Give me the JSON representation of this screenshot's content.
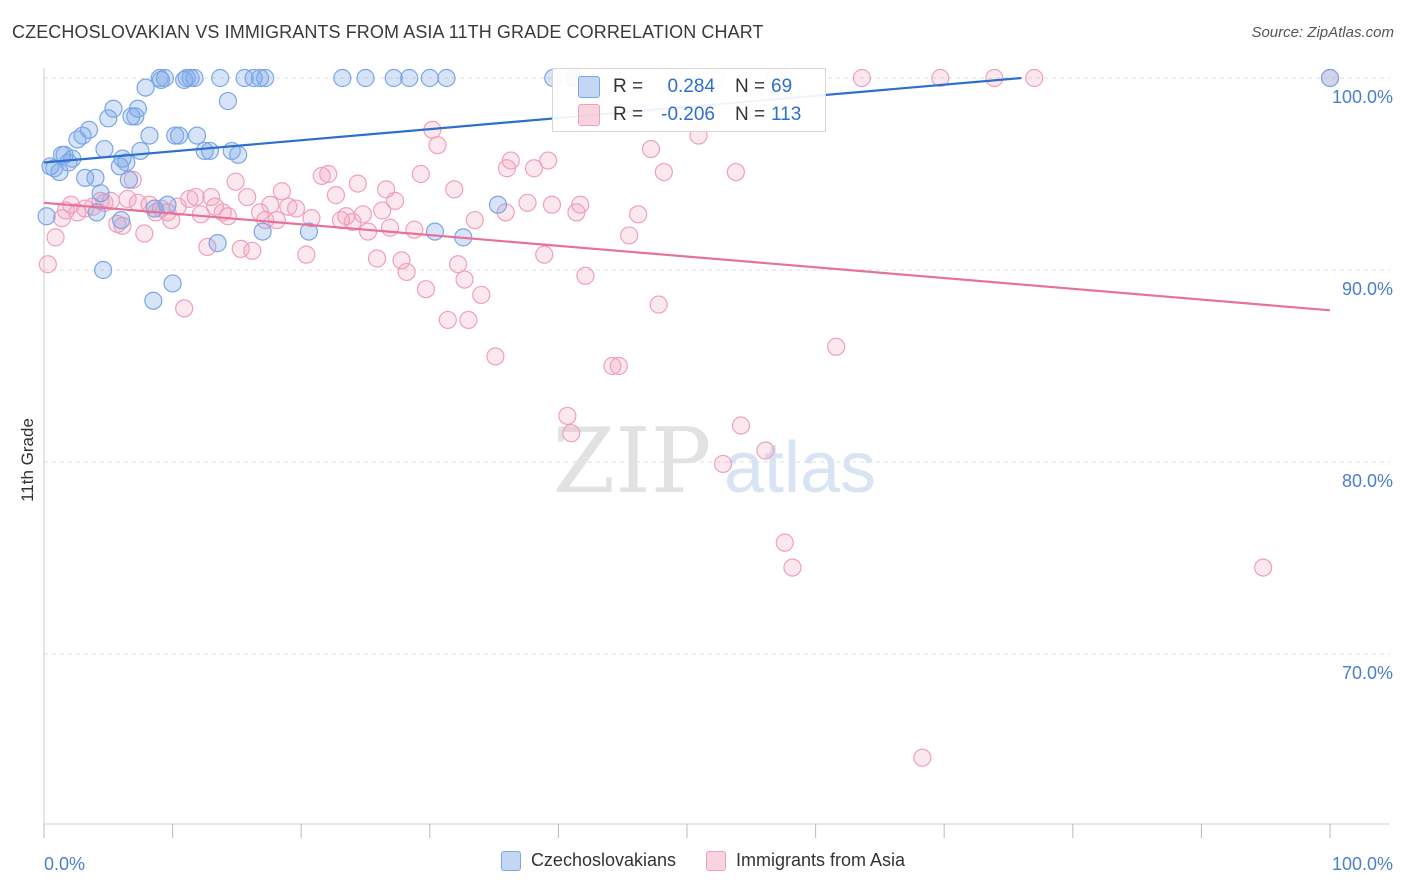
{
  "title": "CZECHOSLOVAKIAN VS IMMIGRANTS FROM ASIA 11TH GRADE CORRELATION CHART",
  "source": "Source: ZipAtlas.com",
  "watermark": {
    "zip": "ZIP",
    "atlas": "atlas"
  },
  "colors": {
    "blue": "#7aa6e8",
    "blue_line": "#2c6fd0",
    "blue_fill": "rgba(122,166,232,0.30)",
    "pink": "#f0a0bc",
    "pink_line": "#e8709a",
    "pink_fill": "rgba(240,160,188,0.25)",
    "axis_text": "#4a7fd0"
  },
  "stats": [
    {
      "series": "Czechoslovakians",
      "r_label": "R =",
      "r": "0.284",
      "n_label": "N =",
      "n": "69"
    },
    {
      "series": "Immigrants from Asia",
      "r_label": "R =",
      "r": "-0.206",
      "n_label": "N =",
      "n": "113"
    }
  ],
  "chart_data": {
    "type": "scatter",
    "title": "CZECHOSLOVAKIAN VS IMMIGRANTS FROM ASIA 11TH GRADE CORRELATION CHART",
    "xlabel": "",
    "ylabel": "11th Grade",
    "xlim": [
      0,
      100
    ],
    "ylim": [
      60,
      100
    ],
    "x_tick_labels": [
      "0.0%",
      "100.0%"
    ],
    "y_ticks": [
      100,
      90,
      80,
      70
    ],
    "y_tick_labels": [
      "100.0%",
      "90.0%",
      "80.0%",
      "70.0%"
    ],
    "legend_position": "bottom-center",
    "series": [
      {
        "name": "Czechoslovakians",
        "color": "#7aa6e8",
        "trend": {
          "x": [
            0,
            76
          ],
          "y": [
            95.6,
            100.0
          ]
        },
        "points": [
          [
            0.5,
            95.4
          ],
          [
            0.8,
            95.3
          ],
          [
            1.2,
            95.1
          ],
          [
            1.4,
            96.0
          ],
          [
            1.6,
            96.0
          ],
          [
            1.9,
            95.6
          ],
          [
            2.2,
            95.8
          ],
          [
            2.6,
            96.8
          ],
          [
            3.0,
            97.0
          ],
          [
            3.5,
            97.3
          ],
          [
            3.2,
            94.8
          ],
          [
            4.0,
            94.8
          ],
          [
            4.4,
            94.0
          ],
          [
            4.1,
            93.0
          ],
          [
            4.6,
            90.0
          ],
          [
            4.7,
            96.3
          ],
          [
            5.0,
            97.9
          ],
          [
            5.4,
            98.4
          ],
          [
            5.9,
            95.4
          ],
          [
            6.1,
            95.8
          ],
          [
            6.4,
            95.6
          ],
          [
            6.6,
            94.7
          ],
          [
            6.8,
            98.0
          ],
          [
            7.1,
            98.0
          ],
          [
            7.3,
            98.4
          ],
          [
            7.5,
            96.2
          ],
          [
            6.0,
            92.6
          ],
          [
            7.9,
            99.5
          ],
          [
            8.2,
            97.0
          ],
          [
            8.5,
            88.4
          ],
          [
            8.6,
            93.2
          ],
          [
            9.1,
            99.9
          ],
          [
            9.0,
            100.0
          ],
          [
            9.4,
            100.0
          ],
          [
            9.6,
            93.4
          ],
          [
            10.0,
            89.3
          ],
          [
            10.2,
            97.0
          ],
          [
            10.5,
            97.0
          ],
          [
            10.9,
            99.9
          ],
          [
            11.1,
            100.0
          ],
          [
            11.4,
            100.0
          ],
          [
            11.7,
            100.0
          ],
          [
            11.9,
            97.0
          ],
          [
            12.5,
            96.2
          ],
          [
            12.9,
            96.2
          ],
          [
            13.5,
            91.4
          ],
          [
            13.7,
            100.0
          ],
          [
            14.3,
            98.8
          ],
          [
            14.6,
            96.2
          ],
          [
            15.1,
            96.0
          ],
          [
            15.6,
            100.0
          ],
          [
            16.3,
            100.0
          ],
          [
            16.8,
            100.0
          ],
          [
            17.2,
            100.0
          ],
          [
            17.0,
            92.0
          ],
          [
            20.6,
            92.0
          ],
          [
            23.2,
            100.0
          ],
          [
            25.0,
            100.0
          ],
          [
            27.2,
            100.0
          ],
          [
            28.4,
            100.0
          ],
          [
            30.0,
            100.0
          ],
          [
            30.4,
            92.0
          ],
          [
            31.3,
            100.0
          ],
          [
            32.6,
            91.7
          ],
          [
            35.3,
            93.4
          ],
          [
            39.6,
            100.0
          ],
          [
            41.2,
            100.0
          ],
          [
            0.2,
            92.8
          ],
          [
            100.0,
            100.0
          ]
        ]
      },
      {
        "name": "Immigrants from Asia",
        "color": "#f0a0bc",
        "trend": {
          "x": [
            0,
            100
          ],
          "y": [
            93.5,
            87.9
          ]
        },
        "points": [
          [
            0.3,
            90.3
          ],
          [
            0.9,
            91.7
          ],
          [
            1.4,
            92.7
          ],
          [
            1.7,
            93.1
          ],
          [
            2.1,
            93.4
          ],
          [
            2.6,
            93.0
          ],
          [
            3.2,
            93.2
          ],
          [
            3.8,
            93.3
          ],
          [
            4.4,
            93.6
          ],
          [
            4.7,
            93.5
          ],
          [
            5.2,
            93.6
          ],
          [
            5.7,
            92.4
          ],
          [
            6.1,
            92.3
          ],
          [
            6.5,
            93.7
          ],
          [
            6.9,
            94.7
          ],
          [
            7.3,
            93.5
          ],
          [
            7.8,
            91.9
          ],
          [
            8.2,
            93.4
          ],
          [
            8.7,
            93.0
          ],
          [
            9.1,
            93.2
          ],
          [
            9.6,
            93.0
          ],
          [
            9.9,
            92.6
          ],
          [
            10.4,
            93.3
          ],
          [
            10.9,
            88.0
          ],
          [
            11.3,
            93.7
          ],
          [
            11.8,
            93.8
          ],
          [
            12.2,
            92.9
          ],
          [
            12.7,
            91.2
          ],
          [
            13.0,
            93.8
          ],
          [
            13.3,
            93.3
          ],
          [
            13.9,
            93.0
          ],
          [
            14.3,
            92.8
          ],
          [
            14.9,
            94.6
          ],
          [
            15.3,
            91.1
          ],
          [
            15.8,
            93.8
          ],
          [
            16.2,
            91.0
          ],
          [
            16.8,
            93.0
          ],
          [
            17.2,
            92.6
          ],
          [
            17.6,
            93.4
          ],
          [
            18.1,
            92.6
          ],
          [
            18.5,
            94.1
          ],
          [
            19.0,
            93.3
          ],
          [
            19.6,
            93.2
          ],
          [
            20.4,
            90.8
          ],
          [
            20.8,
            92.7
          ],
          [
            21.6,
            94.9
          ],
          [
            22.1,
            95.0
          ],
          [
            22.7,
            93.9
          ],
          [
            23.1,
            92.6
          ],
          [
            23.5,
            92.8
          ],
          [
            24.0,
            92.5
          ],
          [
            24.4,
            94.5
          ],
          [
            24.8,
            92.9
          ],
          [
            25.2,
            92.0
          ],
          [
            25.9,
            90.6
          ],
          [
            26.3,
            93.1
          ],
          [
            26.6,
            94.2
          ],
          [
            26.9,
            92.2
          ],
          [
            27.3,
            93.6
          ],
          [
            27.8,
            90.5
          ],
          [
            28.2,
            89.9
          ],
          [
            28.8,
            92.1
          ],
          [
            29.3,
            95.0
          ],
          [
            29.7,
            89.0
          ],
          [
            30.2,
            97.3
          ],
          [
            30.6,
            96.5
          ],
          [
            31.4,
            87.4
          ],
          [
            31.9,
            94.2
          ],
          [
            32.2,
            90.3
          ],
          [
            32.7,
            89.5
          ],
          [
            33.0,
            87.4
          ],
          [
            34.0,
            88.7
          ],
          [
            35.1,
            85.5
          ],
          [
            36.0,
            95.3
          ],
          [
            36.3,
            95.7
          ],
          [
            37.6,
            93.5
          ],
          [
            38.1,
            95.3
          ],
          [
            38.9,
            90.8
          ],
          [
            39.2,
            95.7
          ],
          [
            39.5,
            93.4
          ],
          [
            40.7,
            82.4
          ],
          [
            41.0,
            81.5
          ],
          [
            41.4,
            93.0
          ],
          [
            41.7,
            93.4
          ],
          [
            42.1,
            89.7
          ],
          [
            44.2,
            85.0
          ],
          [
            44.7,
            85.0
          ],
          [
            45.5,
            91.8
          ],
          [
            46.2,
            92.9
          ],
          [
            47.2,
            96.3
          ],
          [
            47.8,
            88.2
          ],
          [
            48.2,
            95.1
          ],
          [
            50.6,
            98.0
          ],
          [
            50.9,
            97.0
          ],
          [
            52.2,
            100.0
          ],
          [
            52.8,
            79.9
          ],
          [
            53.8,
            95.1
          ],
          [
            54.2,
            81.9
          ],
          [
            56.1,
            80.6
          ],
          [
            57.6,
            75.8
          ],
          [
            58.2,
            74.5
          ],
          [
            61.6,
            86.0
          ],
          [
            63.6,
            100.0
          ],
          [
            68.3,
            64.6
          ],
          [
            69.7,
            100.0
          ],
          [
            73.9,
            100.0
          ],
          [
            77.0,
            100.0
          ],
          [
            94.8,
            74.5
          ],
          [
            100.0,
            100.0
          ],
          [
            56.9,
            100.0
          ],
          [
            41.2,
            100.0
          ],
          [
            35.9,
            93.0
          ],
          [
            33.5,
            92.6
          ]
        ]
      }
    ]
  }
}
